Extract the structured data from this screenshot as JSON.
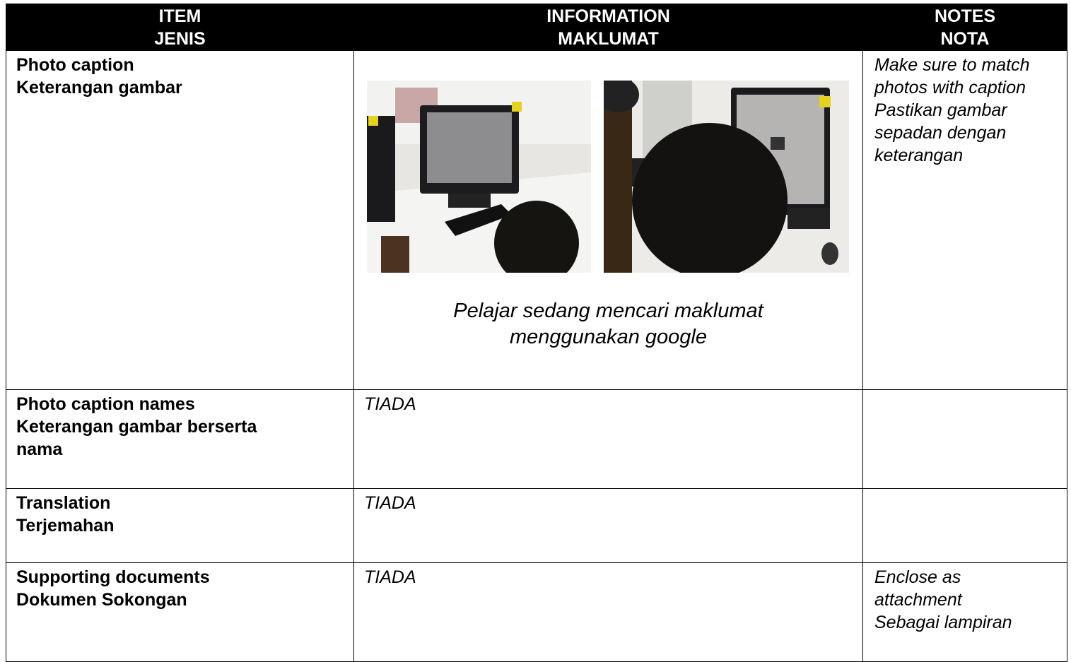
{
  "table": {
    "header": [
      [
        "ITEM",
        "JENIS"
      ],
      [
        "INFORMATION",
        "MAKLUMAT"
      ],
      [
        "NOTES",
        "NOTA"
      ]
    ],
    "rows": [
      {
        "item": [
          "Photo caption",
          "Keterangan gambar"
        ],
        "information": [
          "Pelajar sedang mencari maklumat",
          "menggunakan google"
        ],
        "notes": [
          "Make sure to match",
          "photos with caption",
          "Pastikan gambar",
          "sepadan dengan",
          "keterangan"
        ]
      },
      {
        "item": [
          "Photo caption names",
          "Keterangan gambar berserta",
          "nama"
        ],
        "information": [
          "TIADA"
        ],
        "notes": []
      },
      {
        "item": [
          "Translation",
          "Terjemahan"
        ],
        "information": [
          "TIADA"
        ],
        "notes": []
      },
      {
        "item": [
          "Supporting documents",
          "Dokumen Sokongan"
        ],
        "information": [
          "TIADA"
        ],
        "notes": [
          "Enclose as",
          "attachment",
          "Sebagai lampiran"
        ]
      }
    ]
  }
}
